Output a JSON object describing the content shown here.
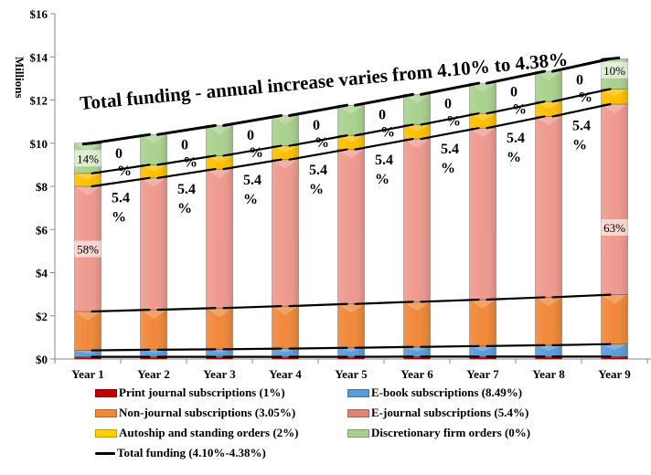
{
  "chart_data": {
    "type": "bar",
    "stacked": true,
    "title": "Total funding - annual increase varies from 4.10% to 4.38%",
    "ylabel": "Millions",
    "xlabel": "",
    "ylim": [
      0,
      16
    ],
    "yticks": [
      "$0",
      "$2",
      "$4",
      "$6",
      "$8",
      "$10",
      "$12",
      "$14",
      "$16"
    ],
    "categories": [
      "Year 1",
      "Year 2",
      "Year 3",
      "Year 4",
      "Year 5",
      "Year 6",
      "Year 7",
      "Year 8",
      "Year 9"
    ],
    "series": [
      {
        "name": "Print journal subscriptions (1%)",
        "color": "#c00000",
        "values": [
          0.1,
          0.1,
          0.1,
          0.1,
          0.1,
          0.11,
          0.11,
          0.11,
          0.11
        ]
      },
      {
        "name": "E-book subscriptions (8.49%)",
        "color": "#5b9bd5",
        "values": [
          0.3,
          0.33,
          0.35,
          0.38,
          0.42,
          0.45,
          0.49,
          0.53,
          0.58
        ]
      },
      {
        "name": "Non-journal subscriptions (3.05%)",
        "color": "#f0883a",
        "values": [
          1.8,
          1.85,
          1.91,
          1.97,
          2.03,
          2.09,
          2.15,
          2.22,
          2.29
        ]
      },
      {
        "name": "E-journal subscriptions (5.4%)",
        "color": "#ef9a8e",
        "values": [
          5.8,
          6.11,
          6.44,
          6.79,
          7.16,
          7.55,
          7.95,
          8.38,
          8.83
        ]
      },
      {
        "name": "Autoship and standing orders (2%)",
        "color": "#ffc000",
        "values": [
          0.6,
          0.61,
          0.62,
          0.64,
          0.65,
          0.66,
          0.68,
          0.69,
          0.7
        ]
      },
      {
        "name": "Discretionary firm orders (0%)",
        "color": "#a9d18e",
        "values": [
          1.4,
          1.4,
          1.4,
          1.4,
          1.4,
          1.4,
          1.4,
          1.4,
          1.4
        ]
      }
    ],
    "line_series": {
      "name": "Total funding (4.10%-4.38%)",
      "color": "#000000",
      "values": [
        10.0,
        10.4,
        10.82,
        11.28,
        11.76,
        12.26,
        12.78,
        13.33,
        13.91
      ]
    },
    "annotations": {
      "gap_labels_green": [
        "0\n%",
        "0\n%",
        "0\n%",
        "0\n%",
        "0\n%",
        "0\n%",
        "0\n%",
        "0\n%"
      ],
      "gap_labels_pink": [
        "5.4\n%",
        "5.4\n%",
        "5.4\n%",
        "5.4\n%",
        "5.4\n%",
        "5.4\n%",
        "5.4\n%",
        "5.4\n%"
      ],
      "year1_green_pct": "14%",
      "year1_pink_pct": "58%",
      "year9_green_pct": "10%",
      "year9_pink_pct": "63%"
    },
    "legend_position": "bottom",
    "grid": false
  },
  "legend": {
    "items": [
      {
        "label": "Print journal subscriptions (1%)",
        "color": "#c00000",
        "kind": "box"
      },
      {
        "label": "E-book subscriptions (8.49%)",
        "color": "#5b9bd5",
        "kind": "box"
      },
      {
        "label": "Non-journal subscriptions (3.05%)",
        "color": "#f0883a",
        "kind": "box"
      },
      {
        "label": "E-journal subscriptions (5.4%)",
        "color": "#ef9a8e",
        "kind": "box"
      },
      {
        "label": "Autoship and standing orders (2%)",
        "color": "#ffc000",
        "kind": "box"
      },
      {
        "label": "Discretionary firm orders (0%)",
        "color": "#a9d18e",
        "kind": "box"
      },
      {
        "label": "Total funding (4.10%-4.38%)",
        "color": "#000000",
        "kind": "line"
      }
    ]
  }
}
